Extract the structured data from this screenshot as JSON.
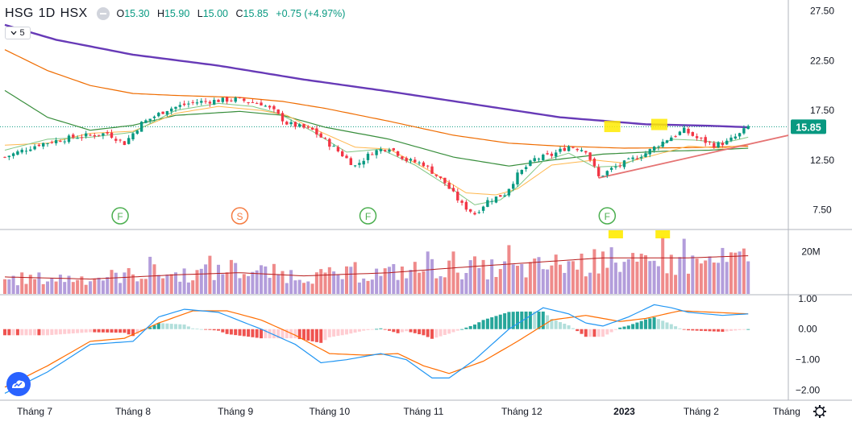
{
  "legend": {
    "symbol": "HSG",
    "interval": "1D",
    "exchange": "HSX",
    "o_label": "O",
    "open": "15.30",
    "h_label": "H",
    "high": "15.90",
    "l_label": "L",
    "low": "15.00",
    "c_label": "C",
    "close": "15.85",
    "change": "+0.75 (+4.97%)",
    "ma_toggle_value": "5"
  },
  "colors": {
    "up": "#089981",
    "down": "#f23645",
    "vol_up": "#b39ddb",
    "vol_down": "#ef8a8a",
    "ma_purple": "#673ab7",
    "ma_orange": "#ef6c00",
    "ma_green": "#388e3c",
    "ma_light_green": "#81c784",
    "ma_yellow": "#ffb74d",
    "trendline": "#e57373",
    "macd_line": "#2196f3",
    "signal_line": "#ff6d00",
    "price_badge": "#089981",
    "marker_green": "#4caf50",
    "marker_orange": "#f57c42",
    "highlight": "#ffeb00"
  },
  "icons": {
    "eye": "eye-icon",
    "dropdown": "chevron-down-icon",
    "logo": "tradingview-logo-icon",
    "settings": "gear-icon"
  },
  "chart_data": {
    "type": "candlestick",
    "symbol": "HSG",
    "interval": "1D",
    "last_price": 15.85,
    "price_label": "15.85",
    "price_axis": {
      "ylim": [
        5.6,
        28.6
      ],
      "ticks": [
        "27.50",
        "22.50",
        "17.50",
        "12.50",
        "7.50"
      ],
      "tick_values": [
        27.5,
        22.5,
        17.5,
        12.5,
        7.5
      ]
    },
    "volume_axis": {
      "ylim": [
        0,
        30
      ],
      "ticks": [
        "20M"
      ],
      "tick_values": [
        20
      ]
    },
    "macd_axis": {
      "ylim": [
        -2.3,
        1.1
      ],
      "ticks": [
        "1.00",
        "0.00",
        "−1.00",
        "−2.00"
      ],
      "tick_values": [
        1,
        0,
        -1,
        -2
      ]
    },
    "x_labels": [
      {
        "label": "Tháng 7",
        "day": 7
      },
      {
        "label": "Tháng 8",
        "day": 30
      },
      {
        "label": "Tháng 9",
        "day": 54
      },
      {
        "label": "Tháng 10",
        "day": 76
      },
      {
        "label": "Tháng 11",
        "day": 98
      },
      {
        "label": "Tháng 12",
        "day": 121
      },
      {
        "label": "2023",
        "day": 145
      },
      {
        "label": "Tháng 2",
        "day": 163
      },
      {
        "label": "Tháng",
        "day": 183
      }
    ],
    "price_keypoints": [
      [
        0,
        12.8
      ],
      [
        8,
        14.1
      ],
      [
        16,
        14.8
      ],
      [
        24,
        15.2
      ],
      [
        28,
        14.2
      ],
      [
        32,
        16.2
      ],
      [
        38,
        17.6
      ],
      [
        44,
        18.3
      ],
      [
        50,
        18.5
      ],
      [
        54,
        18.6
      ],
      [
        60,
        18.2
      ],
      [
        63,
        17.4
      ],
      [
        66,
        16.2
      ],
      [
        72,
        15.5
      ],
      [
        78,
        13.4
      ],
      [
        82,
        11.9
      ],
      [
        86,
        13.3
      ],
      [
        90,
        13.8
      ],
      [
        94,
        12.5
      ],
      [
        98,
        12.1
      ],
      [
        103,
        10.2
      ],
      [
        107,
        8.0
      ],
      [
        110,
        7.1
      ],
      [
        113,
        8.4
      ],
      [
        117,
        9.1
      ],
      [
        120,
        11.0
      ],
      [
        124,
        12.6
      ],
      [
        128,
        13.0
      ],
      [
        132,
        13.9
      ],
      [
        136,
        13.5
      ],
      [
        139,
        10.8
      ],
      [
        142,
        11.6
      ],
      [
        146,
        12.4
      ],
      [
        150,
        13.2
      ],
      [
        155,
        14.6
      ],
      [
        159,
        15.5
      ],
      [
        162,
        14.7
      ],
      [
        166,
        14.0
      ],
      [
        169,
        14.3
      ],
      [
        172,
        15.1
      ],
      [
        174,
        15.85
      ]
    ],
    "ma_keypoints": {
      "ma200": [
        [
          0,
          26.1
        ],
        [
          12,
          24.6
        ],
        [
          30,
          23.1
        ],
        [
          50,
          22.0
        ],
        [
          70,
          20.6
        ],
        [
          90,
          19.4
        ],
        [
          110,
          18.1
        ],
        [
          130,
          16.8
        ],
        [
          150,
          16.1
        ],
        [
          165,
          15.95
        ],
        [
          174,
          15.8
        ]
      ],
      "ma100": [
        [
          0,
          23.6
        ],
        [
          10,
          21.5
        ],
        [
          20,
          20.0
        ],
        [
          30,
          19.2
        ],
        [
          40,
          19.0
        ],
        [
          55,
          18.8
        ],
        [
          65,
          18.4
        ],
        [
          75,
          17.7
        ],
        [
          90,
          16.4
        ],
        [
          105,
          15.0
        ],
        [
          118,
          14.2
        ],
        [
          130,
          13.9
        ],
        [
          145,
          13.7
        ],
        [
          160,
          13.75
        ],
        [
          174,
          13.9
        ]
      ],
      "ma50": [
        [
          0,
          19.5
        ],
        [
          10,
          16.8
        ],
        [
          20,
          15.5
        ],
        [
          30,
          16.0
        ],
        [
          40,
          17.0
        ],
        [
          55,
          17.4
        ],
        [
          65,
          17.0
        ],
        [
          75,
          15.8
        ],
        [
          90,
          14.6
        ],
        [
          105,
          12.8
        ],
        [
          118,
          11.9
        ],
        [
          128,
          12.5
        ],
        [
          140,
          13.1
        ],
        [
          155,
          13.4
        ],
        [
          165,
          13.5
        ],
        [
          174,
          13.7
        ]
      ],
      "ma20": [
        [
          0,
          14.0
        ],
        [
          10,
          14.2
        ],
        [
          20,
          15.2
        ],
        [
          30,
          15.4
        ],
        [
          40,
          17.2
        ],
        [
          50,
          17.9
        ],
        [
          60,
          17.5
        ],
        [
          66,
          17.0
        ],
        [
          72,
          15.7
        ],
        [
          82,
          13.8
        ],
        [
          90,
          13.6
        ],
        [
          100,
          11.3
        ],
        [
          108,
          9.2
        ],
        [
          115,
          9.0
        ],
        [
          120,
          9.6
        ],
        [
          128,
          12.0
        ],
        [
          138,
          12.5
        ],
        [
          145,
          12.2
        ],
        [
          152,
          13.0
        ],
        [
          160,
          13.9
        ],
        [
          168,
          13.7
        ],
        [
          174,
          14.1
        ]
      ],
      "ma10": [
        [
          0,
          13.5
        ],
        [
          10,
          14.6
        ],
        [
          20,
          14.8
        ],
        [
          30,
          15.3
        ],
        [
          40,
          17.5
        ],
        [
          50,
          18.2
        ],
        [
          58,
          17.9
        ],
        [
          64,
          17.2
        ],
        [
          72,
          15.4
        ],
        [
          80,
          13.3
        ],
        [
          88,
          13.6
        ],
        [
          96,
          12.0
        ],
        [
          104,
          9.8
        ],
        [
          110,
          8.0
        ],
        [
          116,
          8.5
        ],
        [
          120,
          9.8
        ],
        [
          126,
          12.4
        ],
        [
          132,
          13.2
        ],
        [
          138,
          11.8
        ],
        [
          144,
          11.9
        ],
        [
          150,
          13.0
        ],
        [
          156,
          14.6
        ],
        [
          162,
          14.5
        ],
        [
          168,
          14.2
        ],
        [
          174,
          14.8
        ]
      ]
    },
    "trendline": {
      "from": [
        139,
        10.7
      ],
      "to": [
        181,
        15.0
      ]
    },
    "h_dotted_level": 15.85,
    "markers": [
      {
        "label": "F",
        "day": 27,
        "kind": "green"
      },
      {
        "label": "S",
        "day": 55,
        "kind": "orange"
      },
      {
        "label": "F",
        "day": 85,
        "kind": "green"
      },
      {
        "label": "F",
        "day": 141,
        "kind": "green"
      }
    ],
    "price_highlights": [
      {
        "day": 142,
        "price": 15.8
      },
      {
        "day": 153,
        "price": 16.0
      }
    ],
    "volume_highlights": [
      {
        "day": 143
      },
      {
        "day": 154
      }
    ],
    "volume_keypoints": [
      [
        0,
        7
      ],
      [
        20,
        7.5
      ],
      [
        30,
        9
      ],
      [
        34,
        10
      ],
      [
        40,
        9
      ],
      [
        48,
        10
      ],
      [
        55,
        11
      ],
      [
        62,
        10
      ],
      [
        70,
        8.5
      ],
      [
        80,
        9
      ],
      [
        90,
        10
      ],
      [
        100,
        12
      ],
      [
        110,
        12.5
      ],
      [
        120,
        11
      ],
      [
        130,
        14
      ],
      [
        140,
        15
      ],
      [
        150,
        13
      ],
      [
        174,
        16
      ]
    ],
    "volume_spikes": [
      [
        34,
        17.5
      ],
      [
        48,
        18
      ],
      [
        53,
        16
      ],
      [
        82,
        15
      ],
      [
        99,
        20
      ],
      [
        105,
        20
      ],
      [
        112,
        16
      ],
      [
        118,
        23
      ],
      [
        140,
        20
      ],
      [
        142,
        22
      ],
      [
        154,
        27
      ],
      [
        159,
        26
      ]
    ],
    "volume_ma_keypoints": [
      [
        0,
        8
      ],
      [
        20,
        7
      ],
      [
        40,
        9
      ],
      [
        55,
        10
      ],
      [
        70,
        8.5
      ],
      [
        90,
        10
      ],
      [
        110,
        13
      ],
      [
        125,
        15
      ],
      [
        140,
        17
      ],
      [
        160,
        17
      ],
      [
        174,
        18
      ]
    ],
    "macd_keypoints": [
      [
        0,
        -2.1
      ],
      [
        10,
        -1.4
      ],
      [
        20,
        -0.5
      ],
      [
        30,
        -0.4
      ],
      [
        36,
        0.4
      ],
      [
        42,
        0.65
      ],
      [
        50,
        0.55
      ],
      [
        60,
        0.0
      ],
      [
        68,
        -0.5
      ],
      [
        74,
        -1.1
      ],
      [
        80,
        -1.0
      ],
      [
        88,
        -0.8
      ],
      [
        94,
        -1.0
      ],
      [
        100,
        -1.6
      ],
      [
        104,
        -1.6
      ],
      [
        110,
        -1.0
      ],
      [
        118,
        0.0
      ],
      [
        126,
        0.7
      ],
      [
        132,
        0.5
      ],
      [
        136,
        0.2
      ],
      [
        140,
        0.1
      ],
      [
        146,
        0.4
      ],
      [
        152,
        0.8
      ],
      [
        156,
        0.7
      ],
      [
        160,
        0.55
      ],
      [
        168,
        0.45
      ],
      [
        174,
        0.5
      ]
    ],
    "signal_keypoints": [
      [
        0,
        -1.9
      ],
      [
        10,
        -1.2
      ],
      [
        20,
        -0.4
      ],
      [
        28,
        -0.3
      ],
      [
        36,
        0.2
      ],
      [
        44,
        0.6
      ],
      [
        52,
        0.6
      ],
      [
        60,
        0.3
      ],
      [
        68,
        -0.2
      ],
      [
        76,
        -0.8
      ],
      [
        84,
        -0.85
      ],
      [
        92,
        -0.8
      ],
      [
        98,
        -1.2
      ],
      [
        104,
        -1.45
      ],
      [
        112,
        -1.05
      ],
      [
        120,
        -0.4
      ],
      [
        128,
        0.3
      ],
      [
        136,
        0.45
      ],
      [
        144,
        0.25
      ],
      [
        150,
        0.35
      ],
      [
        158,
        0.6
      ],
      [
        166,
        0.55
      ],
      [
        174,
        0.5
      ]
    ]
  }
}
